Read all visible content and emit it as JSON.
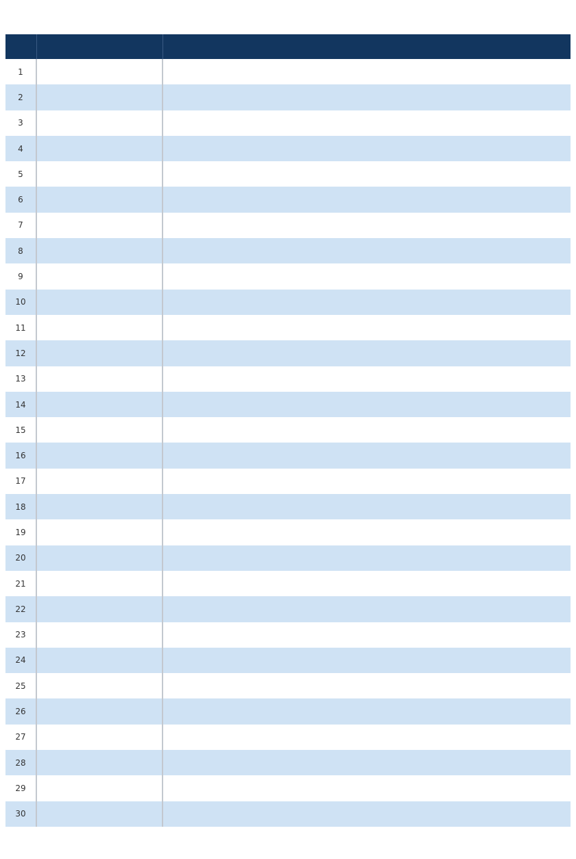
{
  "title": "",
  "header": {
    "col1": "",
    "col2": "",
    "col3": ""
  },
  "rows": [
    {
      "rank": "1",
      "name": "",
      "desc": ""
    },
    {
      "rank": "2",
      "name": "",
      "desc": ""
    },
    {
      "rank": "3",
      "name": "",
      "desc": ""
    },
    {
      "rank": "4",
      "name": "",
      "desc": ""
    },
    {
      "rank": "5",
      "name": "",
      "desc": ""
    },
    {
      "rank": "6",
      "name": "",
      "desc": ""
    },
    {
      "rank": "7",
      "name": "",
      "desc": ""
    },
    {
      "rank": "8",
      "name": "",
      "desc": ""
    },
    {
      "rank": "9",
      "name": "",
      "desc": ""
    },
    {
      "rank": "10",
      "name": "",
      "desc": ""
    },
    {
      "rank": "11",
      "name": "",
      "desc": ""
    },
    {
      "rank": "12",
      "name": "",
      "desc": ""
    },
    {
      "rank": "13",
      "name": "",
      "desc": ""
    },
    {
      "rank": "14",
      "name": "",
      "desc": ""
    },
    {
      "rank": "15",
      "name": "",
      "desc": ""
    },
    {
      "rank": "16",
      "name": "",
      "desc": ""
    },
    {
      "rank": "17",
      "name": "",
      "desc": ""
    },
    {
      "rank": "18",
      "name": "",
      "desc": ""
    },
    {
      "rank": "19",
      "name": "",
      "desc": ""
    },
    {
      "rank": "20",
      "name": "",
      "desc": ""
    },
    {
      "rank": "21",
      "name": "",
      "desc": ""
    },
    {
      "rank": "22",
      "name": "",
      "desc": ""
    },
    {
      "rank": "23",
      "name": "",
      "desc": ""
    },
    {
      "rank": "24",
      "name": "",
      "desc": ""
    },
    {
      "rank": "25",
      "name": "",
      "desc": ""
    },
    {
      "rank": "26",
      "name": "",
      "desc": ""
    },
    {
      "rank": "27",
      "name": "",
      "desc": ""
    },
    {
      "rank": "28",
      "name": "",
      "desc": ""
    },
    {
      "rank": "29",
      "name": "",
      "desc": ""
    },
    {
      "rank": "30",
      "name": "",
      "desc": ""
    }
  ],
  "footer": "",
  "colors": {
    "header_bg": "#12365f",
    "alt_row": "#cfe2f4",
    "footer_text": "#c0212a"
  }
}
